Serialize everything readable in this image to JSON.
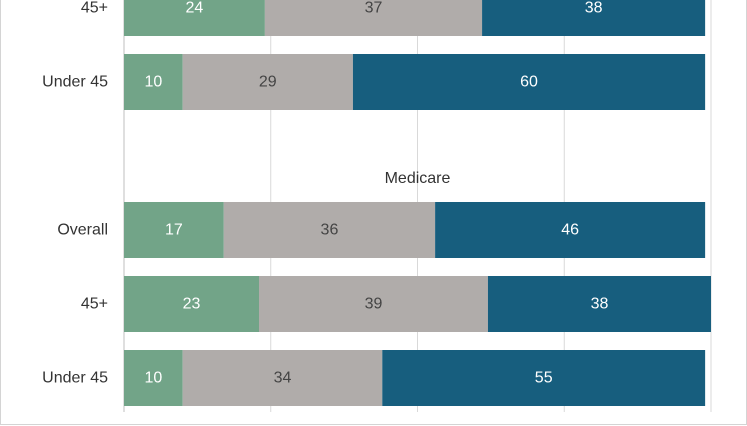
{
  "chart_data": {
    "type": "bar",
    "orientation": "horizontal",
    "stacked": true,
    "xlim": [
      0,
      100
    ],
    "grid": true,
    "colors": [
      "#72a488",
      "#b0acaa",
      "#175e7e"
    ],
    "label_colors": [
      "#ffffff",
      "#444444",
      "#ffffff"
    ],
    "groups": [
      {
        "label": "",
        "rows": [
          {
            "category": "45+",
            "values": [
              24,
              37,
              38
            ]
          },
          {
            "category": "Under 45",
            "values": [
              10,
              29,
              60
            ]
          }
        ]
      },
      {
        "label": "Medicare",
        "rows": [
          {
            "category": "Overall",
            "values": [
              17,
              36,
              46
            ]
          },
          {
            "category": "45+",
            "values": [
              23,
              39,
              38
            ]
          },
          {
            "category": "Under 45",
            "values": [
              10,
              34,
              55
            ]
          }
        ]
      }
    ]
  }
}
